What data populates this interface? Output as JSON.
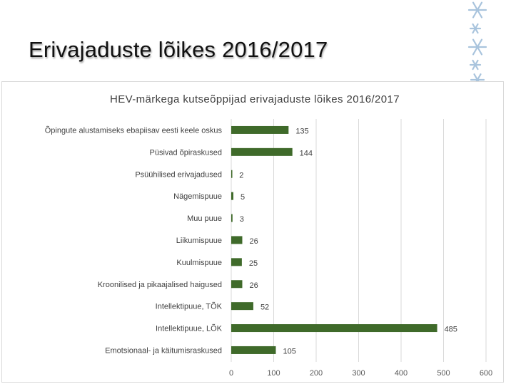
{
  "slide": {
    "title": "Erivajaduste lõikes 2016/2017"
  },
  "decor": {
    "icon": "snowflake-ornament-icon",
    "color": "#a9c4dd"
  },
  "chart_data": {
    "type": "bar",
    "orientation": "horizontal",
    "title": "HEV-märkega kutseõppijad erivajaduste lõikes 2016/2017",
    "categories": [
      "Õpingute alustamiseks ebapiisav eesti keele oskus",
      "Püsivad õpiraskused",
      "Psüühilised erivajadused",
      "Nägemispuue",
      "Muu puue",
      "Liikumispuue",
      "Kuulmispuue",
      "Kroonilised ja pikaajalised haigused",
      "Intellektipuue, TÕK",
      "Intellektipuue, LÕK",
      "Emotsionaal- ja käitumisraskused"
    ],
    "values": [
      135,
      144,
      2,
      5,
      3,
      26,
      25,
      26,
      52,
      485,
      105
    ],
    "xlim": [
      0,
      600
    ],
    "xticks": [
      0,
      100,
      200,
      300,
      400,
      500,
      600
    ],
    "grid": true,
    "legend": "none",
    "bar_color": "#3f6a2a",
    "grid_color": "#d9d9d9"
  }
}
